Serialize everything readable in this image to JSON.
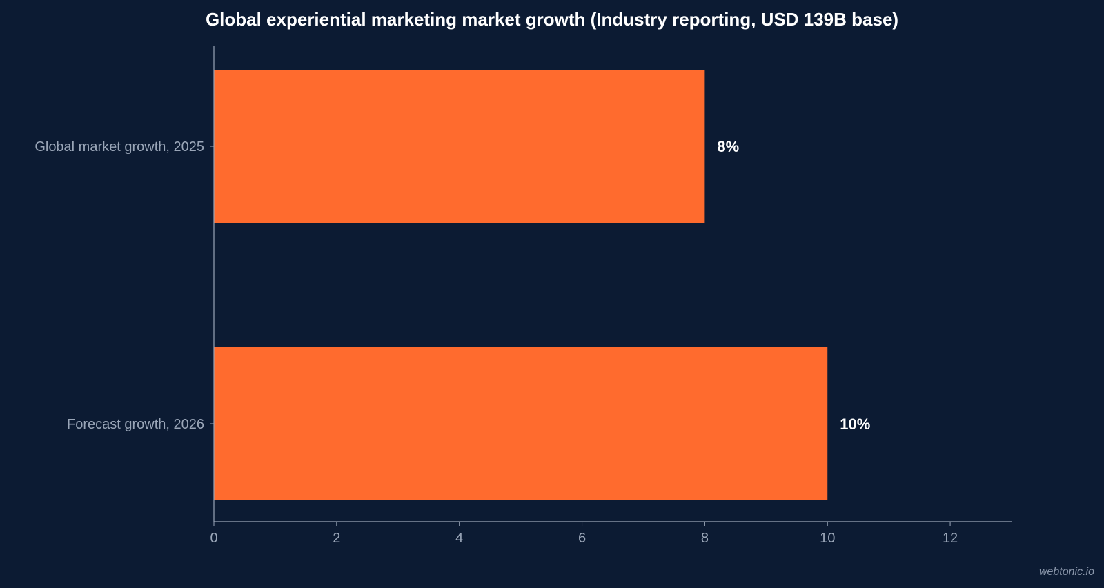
{
  "chart_data": {
    "type": "bar",
    "orientation": "horizontal",
    "title": "Global experiential marketing market growth (Industry reporting, USD 139B base)",
    "categories": [
      "Global market growth, 2025",
      "Forecast growth, 2026"
    ],
    "values": [
      8,
      10
    ],
    "value_labels": [
      "8%",
      "10%"
    ],
    "xlim": [
      0,
      13
    ],
    "xticks": [
      0,
      2,
      4,
      6,
      8,
      10,
      12
    ],
    "grid": false,
    "colors": {
      "background": "#0c1b33",
      "bar": "#ff6b2e",
      "axis": "#9aa6b8",
      "tick_label": "#9aa6b8",
      "value_label": "#ffffff",
      "title": "#ffffff"
    }
  },
  "watermark": "webtonic.io"
}
